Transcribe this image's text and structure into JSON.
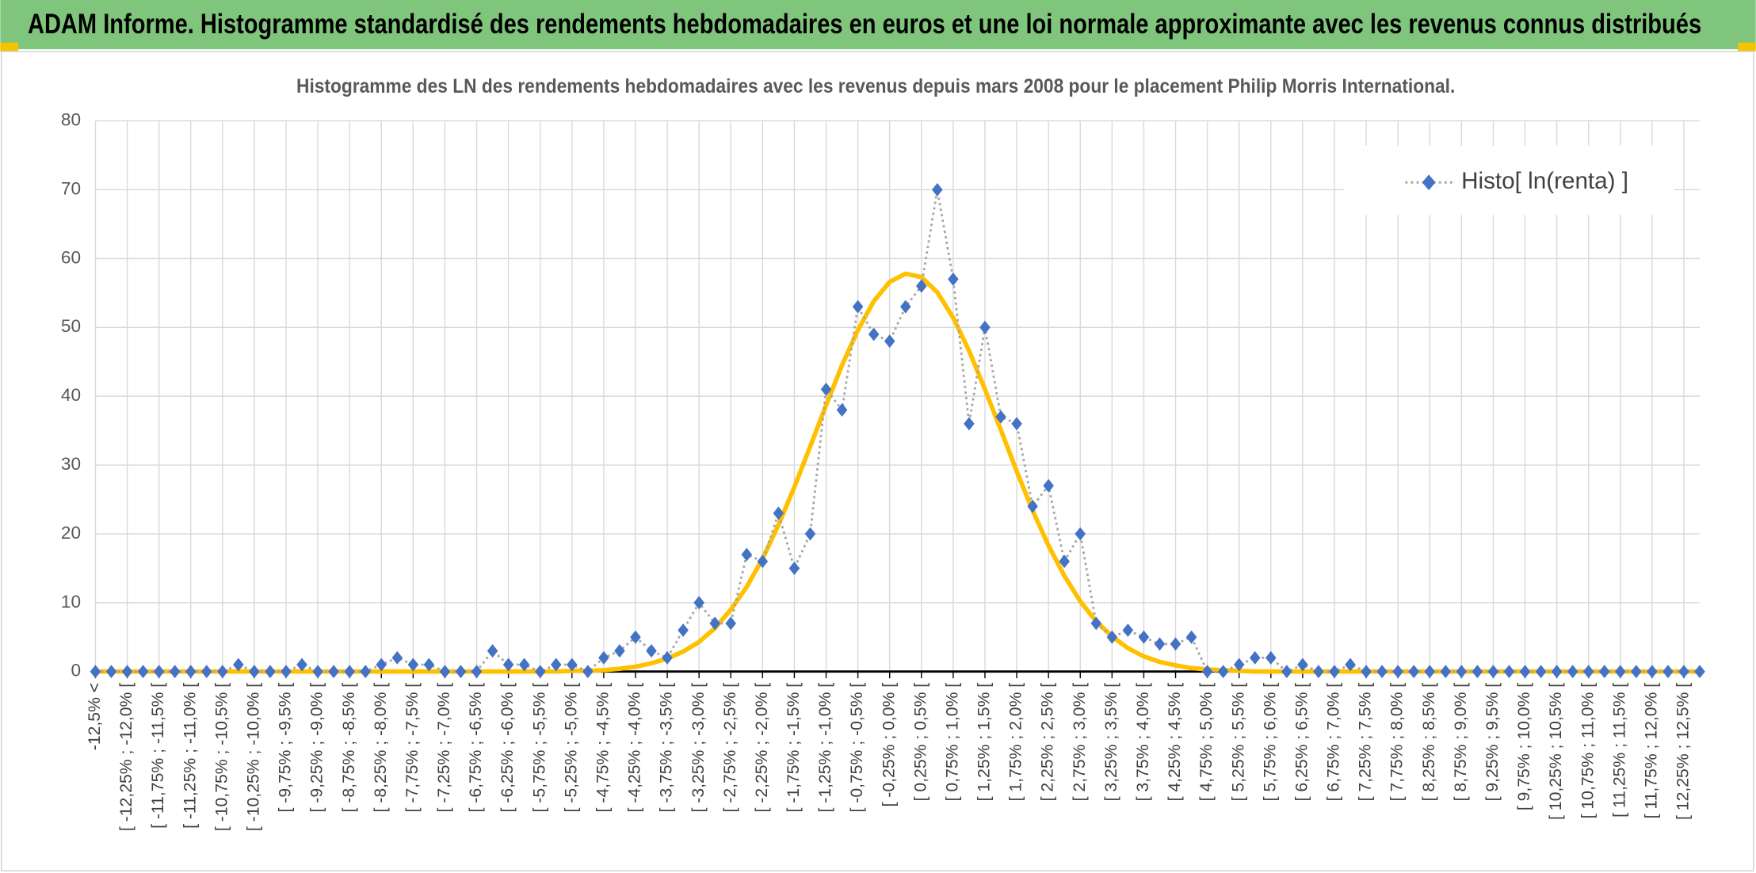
{
  "header": {
    "title": "ADAM Informe. Histogramme standardisé des rendements hebdomadaires en euros et une loi normale approximante avec les revenus connus distribués"
  },
  "chart_data": {
    "type": "line",
    "title": "Histogramme des LN des rendements hebdomadaires avec les revenus depuis mars 2008 pour le placement Philip Morris International.",
    "categories": [
      "-12,5% <",
      null,
      "[ -12,25% ; -12,0% [",
      null,
      "[ -11,75% ; -11,5% [",
      null,
      "[ -11,25% ; -11,0% [",
      null,
      "[ -10,75% ; -10,5% [",
      null,
      "[ -10,25% ; -10,0% [",
      null,
      "[ -9,75% ; -9,5% [",
      null,
      "[ -9,25% ; -9,0% [",
      null,
      "[ -8,75% ; -8,5% [",
      null,
      "[ -8,25% ; -8,0% [",
      null,
      "[ -7,75% ; -7,5% [",
      null,
      "[ -7,25% ; -7,0% [",
      null,
      "[ -6,75% ; -6,5% [",
      null,
      "[ -6,25% ; -6,0% [",
      null,
      "[ -5,75% ; -5,5% [",
      null,
      "[ -5,25% ; -5,0% [",
      null,
      "[ -4,75% ; -4,5% [",
      null,
      "[ -4,25% ; -4,0% [",
      null,
      "[ -3,75% ; -3,5% [",
      null,
      "[ -3,25% ; -3,0% [",
      null,
      "[ -2,75% ; -2,5% [",
      null,
      "[ -2,25% ; -2,0% [",
      null,
      "[ -1,75% ; -1,5% [",
      null,
      "[ -1,25% ; -1,0% [",
      null,
      "[ -0,75% ; -0,5% [",
      null,
      "[ -0,25% ; 0,0% [",
      null,
      "[ 0,25% ; 0,5% [",
      null,
      "[ 0,75% ; 1,0% [",
      null,
      "[ 1,25% ; 1,5% [",
      null,
      "[ 1,75% ; 2,0% [",
      null,
      "[ 2,25% ; 2,5% [",
      null,
      "[ 2,75% ; 3,0% [",
      null,
      "[ 3,25% ; 3,5% [",
      null,
      "[ 3,75% ; 4,0% [",
      null,
      "[ 4,25% ; 4,5% [",
      null,
      "[ 4,75% ; 5,0% [",
      null,
      "[ 5,25% ; 5,5% [",
      null,
      "[ 5,75% ; 6,0% [",
      null,
      "[ 6,25% ; 6,5% [",
      null,
      "[ 6,75% ; 7,0% [",
      null,
      "[ 7,25% ; 7,5% [",
      null,
      "[ 7,75% ; 8,0% [",
      null,
      "[ 8,25% ; 8,5% [",
      null,
      "[ 8,75% ; 9,0% [",
      null,
      "[ 9,25% ; 9,5% [",
      null,
      "[ 9,75% ; 10,0% [",
      null,
      "[ 10,25% ; 10,5% [",
      null,
      "[ 10,75% ; 11,0% [",
      null,
      "[ 11,25% ; 11,5% [",
      null,
      "[ 11,75% ; 12,0% [",
      null,
      "[ 12,25% ; 12,5% [",
      null
    ],
    "series": [
      {
        "name": "Histo[ ln(renta) ]",
        "color": "#4472c4",
        "line_color": "#a5a5a5",
        "values": [
          0,
          0,
          0,
          0,
          0,
          0,
          0,
          0,
          0,
          1,
          0,
          0,
          0,
          1,
          0,
          0,
          0,
          0,
          1,
          2,
          1,
          1,
          0,
          0,
          0,
          3,
          1,
          1,
          0,
          1,
          1,
          0,
          2,
          3,
          5,
          3,
          2,
          6,
          10,
          7,
          7,
          17,
          16,
          23,
          15,
          20,
          41,
          38,
          53,
          49,
          48,
          53,
          56,
          70,
          57,
          36,
          50,
          37,
          36,
          24,
          27,
          16,
          20,
          7,
          5,
          6,
          5,
          4,
          4,
          5,
          0,
          0,
          1,
          2,
          2,
          0,
          1,
          0,
          0,
          1,
          0,
          0,
          0,
          0,
          0,
          0,
          0,
          0,
          0,
          0,
          0,
          0,
          0,
          0,
          0,
          0,
          0,
          0,
          0,
          0,
          0,
          0
        ]
      },
      {
        "color": "#ffc000",
        "values": [
          0,
          0,
          0,
          0,
          0,
          0,
          0,
          0,
          0,
          0,
          0,
          0,
          0,
          0,
          0,
          0,
          0,
          0,
          0,
          0,
          0,
          0,
          0,
          0,
          0,
          0,
          0,
          0,
          0,
          0,
          0.1,
          0.1,
          0.2,
          0.4,
          0.7,
          1.2,
          1.9,
          2.9,
          4.3,
          6.3,
          9.0,
          12.3,
          16.4,
          21.3,
          26.8,
          32.7,
          38.7,
          44.5,
          49.6,
          53.8,
          56.6,
          57.8,
          57.3,
          55.1,
          51.4,
          46.6,
          41.0,
          35.1,
          29.1,
          23.4,
          18.3,
          13.9,
          10.2,
          7.3,
          5.1,
          3.4,
          2.2,
          1.4,
          0.9,
          0.5,
          0.3,
          0.2,
          0.1,
          0,
          0,
          0,
          0,
          0,
          0,
          0,
          0,
          0,
          0,
          0,
          0,
          0,
          0,
          0,
          0,
          0,
          0,
          0,
          0,
          0,
          0,
          0,
          0,
          0,
          0,
          0,
          0,
          0
        ]
      }
    ],
    "ylim": [
      0,
      80
    ],
    "yticks": [
      0,
      10,
      20,
      30,
      40,
      50,
      60,
      70,
      80
    ],
    "grid": true,
    "legend": "upper right"
  }
}
